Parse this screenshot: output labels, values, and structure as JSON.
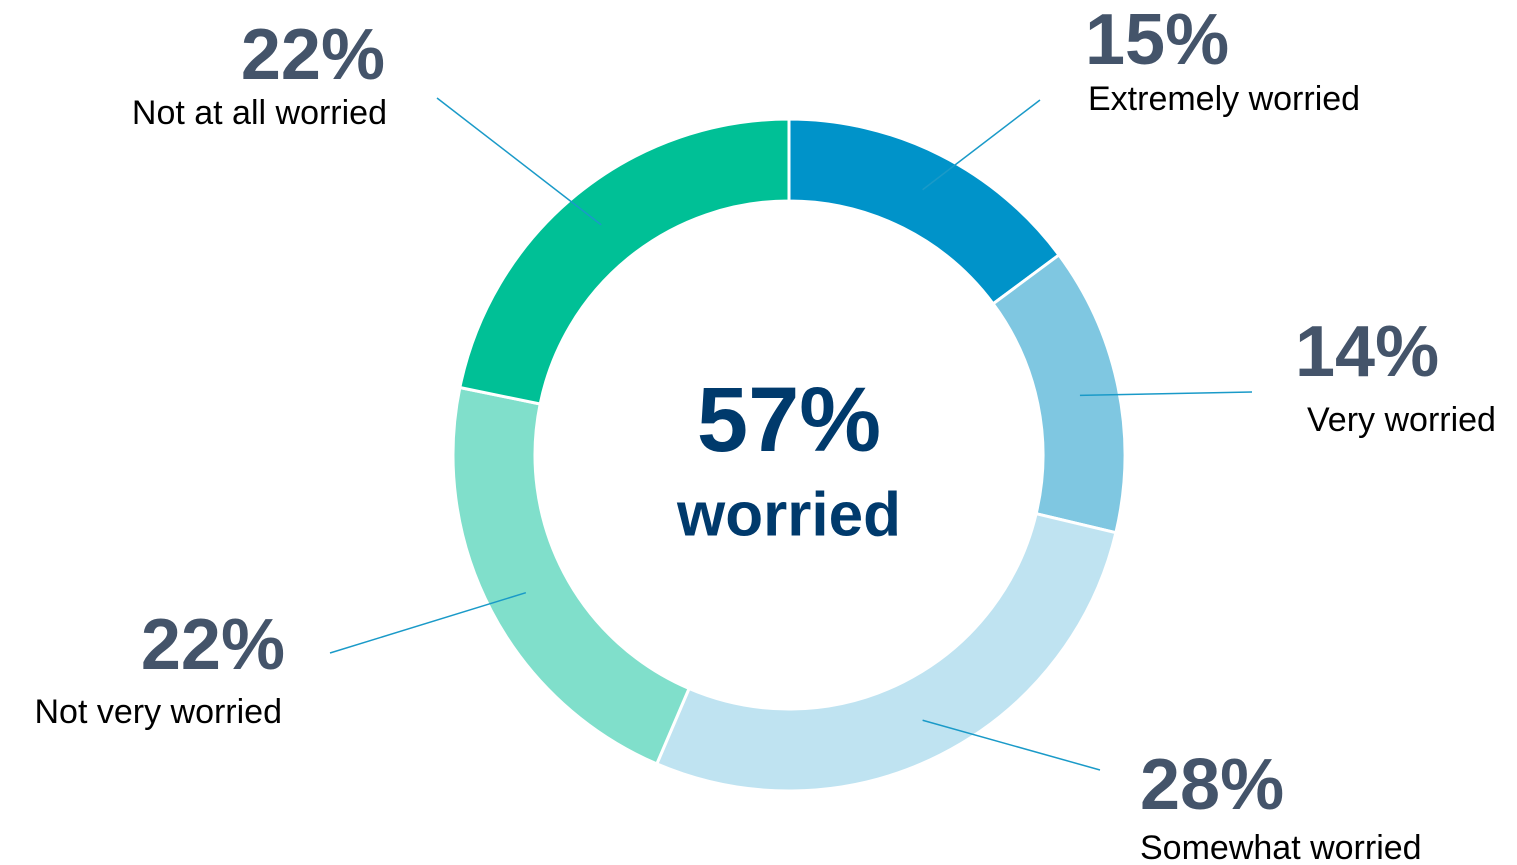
{
  "chart_data": {
    "type": "donut",
    "categories": [
      "Extremely worried",
      "Very worried",
      "Somewhat worried",
      "Not very worried",
      "Not at all worried"
    ],
    "values": [
      15,
      14,
      28,
      22,
      22
    ],
    "value_labels": [
      "15%",
      "14%",
      "28%",
      "22%",
      "22%"
    ],
    "colors": [
      "#0093c9",
      "#7fc7e1",
      "#bfe3f1",
      "#80dfcb",
      "#00c096"
    ],
    "center_text": [
      "57%",
      "worried"
    ]
  }
}
